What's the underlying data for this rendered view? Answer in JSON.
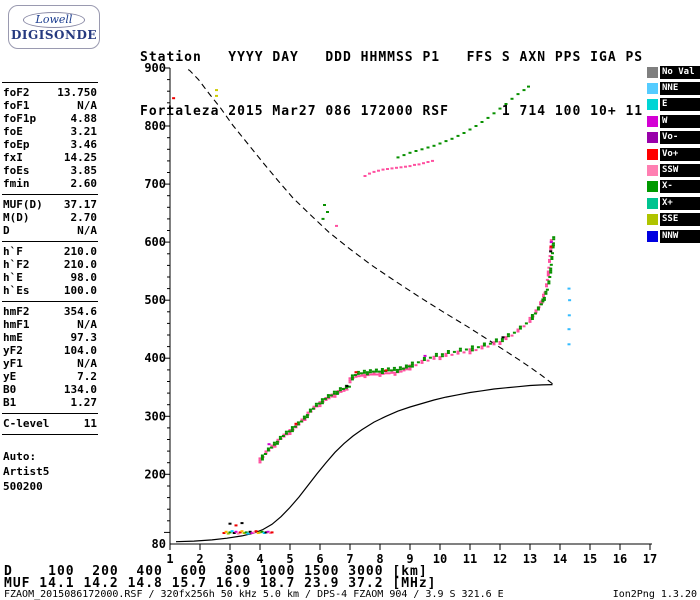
{
  "logo": {
    "top": "Lowell",
    "bottom": "DIGISONDE"
  },
  "header": {
    "line1": "Station   YYYY DAY   DDD HHMMSS P1   FFS S AXN PPS IGA PS",
    "line2": "Fortaleza 2015 Mar27 086 172000 RSF      1 714 100 10+ 11"
  },
  "params": {
    "groups": [
      {
        "rows": [
          [
            "foF2",
            "13.750"
          ],
          [
            "foF1",
            "N/A"
          ],
          [
            "foF1p",
            "4.88"
          ],
          [
            "foE",
            "3.21"
          ],
          [
            "foEp",
            "3.46"
          ],
          [
            "fxI",
            "14.25"
          ],
          [
            "foEs",
            "3.85"
          ],
          [
            "fmin",
            "2.60"
          ]
        ]
      },
      {
        "rows": [
          [
            "MUF(D)",
            "37.17"
          ],
          [
            "M(D)",
            "2.70"
          ],
          [
            "D",
            "N/A"
          ]
        ]
      },
      {
        "rows": [
          [
            "h`F",
            "210.0"
          ],
          [
            "h`F2",
            "210.0"
          ],
          [
            "h`E",
            "98.0"
          ],
          [
            "h`Es",
            "100.0"
          ]
        ]
      },
      {
        "rows": [
          [
            "hmF2",
            "354.6"
          ],
          [
            "hmF1",
            "N/A"
          ],
          [
            "hmE",
            "97.3"
          ],
          [
            "yF2",
            "104.0"
          ],
          [
            "yF1",
            "N/A"
          ],
          [
            "yE",
            "7.2"
          ],
          [
            "B0",
            "134.0"
          ],
          [
            "B1",
            "1.27"
          ]
        ]
      },
      {
        "rows": [
          [
            "C-level",
            "11"
          ]
        ]
      }
    ],
    "footer": [
      "Auto:",
      "Artist5",
      "500200"
    ]
  },
  "legend": {
    "items": [
      {
        "label": "No Val",
        "color": "#7F7F7F"
      },
      {
        "label": "NNE",
        "color": "#55CCFF"
      },
      {
        "label": "E",
        "color": "#00D5D5"
      },
      {
        "label": "W",
        "color": "#D400D4"
      },
      {
        "label": "Vo-",
        "color": "#9900AA"
      },
      {
        "label": "Vo+",
        "color": "#FF0000"
      },
      {
        "label": "SSW",
        "color": "#FF7FB2"
      },
      {
        "label": "X-",
        "color": "#009900"
      },
      {
        "label": "X+",
        "color": "#00C490"
      },
      {
        "label": "SSE",
        "color": "#AFC400"
      },
      {
        "label": "NNW",
        "color": "#0000E0"
      }
    ]
  },
  "footer": {
    "d_row": "D    100  200  400  600  800 1000 1500 3000 [km]",
    "muf_row": "MUF 14.1 14.2 14.8 15.7 16.9 18.7 23.9 37.2 [MHz]",
    "status_left": "FZAOM_2015086172000.RSF / 320fx256h 50 kHz 5.0 km / DPS-4 FZAOM 904 / 3.9 S 321.6 E",
    "status_right": "Ion2Png 1.3.20"
  },
  "chart_data": {
    "type": "scatter",
    "xlim": [
      1,
      17
    ],
    "ylim": [
      80,
      900
    ],
    "x_ticks": [
      1,
      2,
      3,
      4,
      5,
      6,
      7,
      8,
      9,
      10,
      11,
      12,
      13,
      14,
      15,
      16,
      17
    ],
    "y_ticks": [
      [
        900,
        "900"
      ],
      [
        800,
        "800"
      ],
      [
        700,
        "700"
      ],
      [
        600,
        "600"
      ],
      [
        500,
        "500"
      ],
      [
        400,
        "400"
      ],
      [
        300,
        "300"
      ],
      [
        200,
        "200"
      ],
      [
        80,
        "80"
      ]
    ],
    "muf_table": {
      "distances_km": [
        100,
        200,
        400,
        600,
        800,
        1000,
        1500,
        3000
      ],
      "muf_mhz": [
        14.1,
        14.2,
        14.8,
        15.7,
        16.9,
        18.7,
        23.9,
        37.2
      ]
    },
    "profile_solid": [
      [
        1.2,
        84
      ],
      [
        1.8,
        85
      ],
      [
        2.4,
        87
      ],
      [
        2.9,
        90
      ],
      [
        3.4,
        94
      ],
      [
        3.8,
        99
      ],
      [
        4.1,
        105
      ],
      [
        4.4,
        114
      ],
      [
        4.7,
        127
      ],
      [
        5.0,
        143
      ],
      [
        5.3,
        161
      ],
      [
        5.6,
        181
      ],
      [
        5.9,
        201
      ],
      [
        6.2,
        220
      ],
      [
        6.5,
        238
      ],
      [
        6.8,
        253
      ],
      [
        7.1,
        266
      ],
      [
        7.4,
        277
      ],
      [
        7.8,
        290
      ],
      [
        8.2,
        300
      ],
      [
        8.6,
        309
      ],
      [
        9.0,
        316
      ],
      [
        9.4,
        322
      ],
      [
        9.8,
        328
      ],
      [
        10.2,
        333
      ],
      [
        10.6,
        337
      ],
      [
        11.0,
        341
      ],
      [
        11.4,
        344
      ],
      [
        11.8,
        347
      ],
      [
        12.2,
        349
      ],
      [
        12.6,
        351
      ],
      [
        13.0,
        353
      ],
      [
        13.4,
        354
      ],
      [
        13.75,
        354.6
      ]
    ],
    "profile_dashed": [
      [
        13.75,
        356
      ],
      [
        13.6,
        362
      ],
      [
        13.4,
        370
      ],
      [
        13.1,
        381
      ],
      [
        12.7,
        395
      ],
      [
        12.2,
        412
      ],
      [
        11.6,
        432
      ],
      [
        10.9,
        455
      ],
      [
        10.1,
        480
      ],
      [
        9.3,
        506
      ],
      [
        8.5,
        533
      ],
      [
        7.7,
        561
      ],
      [
        7.0,
        588
      ],
      [
        6.3,
        617
      ],
      [
        5.7,
        646
      ],
      [
        5.1,
        676
      ],
      [
        4.6,
        706
      ],
      [
        4.1,
        737
      ],
      [
        3.6,
        769
      ],
      [
        3.1,
        801
      ],
      [
        2.7,
        830
      ],
      [
        2.3,
        856
      ],
      [
        1.95,
        880
      ],
      [
        1.65,
        896
      ],
      [
        1.5,
        900
      ]
    ],
    "series": [
      {
        "name": "f-trace-o",
        "color": "#FF50A0",
        "thicken": true,
        "points": [
          [
            4.0,
            224
          ],
          [
            4.1,
            230
          ],
          [
            4.2,
            236
          ],
          [
            4.3,
            241
          ],
          [
            4.4,
            246
          ],
          [
            4.5,
            251
          ],
          [
            4.6,
            256
          ],
          [
            4.7,
            261
          ],
          [
            4.8,
            265
          ],
          [
            4.9,
            269
          ],
          [
            5.0,
            273
          ],
          [
            5.1,
            277
          ],
          [
            5.2,
            281
          ],
          [
            5.3,
            286
          ],
          [
            5.4,
            291
          ],
          [
            5.5,
            297
          ],
          [
            5.6,
            303
          ],
          [
            5.7,
            308
          ],
          [
            5.8,
            313
          ],
          [
            5.9,
            317
          ],
          [
            6.0,
            321
          ],
          [
            6.1,
            325
          ],
          [
            6.2,
            328
          ],
          [
            6.3,
            331
          ],
          [
            6.4,
            334
          ],
          [
            6.5,
            337
          ],
          [
            6.6,
            340
          ],
          [
            6.7,
            342
          ],
          [
            6.8,
            344
          ],
          [
            6.9,
            346
          ],
          [
            7.0,
            362
          ],
          [
            7.1,
            366
          ],
          [
            7.2,
            368
          ],
          [
            7.3,
            369
          ],
          [
            7.4,
            370
          ],
          [
            7.5,
            371
          ],
          [
            7.6,
            371
          ],
          [
            7.7,
            372
          ],
          [
            7.8,
            372
          ],
          [
            7.9,
            372
          ],
          [
            8.0,
            373
          ],
          [
            8.1,
            373
          ],
          [
            8.2,
            374
          ],
          [
            8.3,
            374
          ],
          [
            8.4,
            375
          ],
          [
            8.5,
            375
          ],
          [
            8.6,
            376
          ],
          [
            8.7,
            377
          ],
          [
            8.8,
            379
          ],
          [
            8.9,
            381
          ],
          [
            9.0,
            384
          ],
          [
            9.2,
            388
          ],
          [
            9.4,
            392
          ],
          [
            9.6,
            396
          ],
          [
            9.8,
            399
          ],
          [
            10.0,
            402
          ],
          [
            10.2,
            404
          ],
          [
            10.4,
            406
          ],
          [
            10.6,
            408
          ],
          [
            10.8,
            410
          ],
          [
            11.0,
            412
          ],
          [
            11.2,
            414
          ],
          [
            11.4,
            417
          ],
          [
            11.6,
            420
          ],
          [
            11.8,
            424
          ],
          [
            12.0,
            428
          ],
          [
            12.2,
            433
          ],
          [
            12.4,
            439
          ],
          [
            12.6,
            446
          ],
          [
            12.8,
            455
          ],
          [
            13.0,
            466
          ],
          [
            13.1,
            472
          ],
          [
            13.2,
            479
          ],
          [
            13.3,
            488
          ],
          [
            13.35,
            493
          ],
          [
            13.4,
            499
          ],
          [
            13.45,
            506
          ],
          [
            13.5,
            513
          ],
          [
            13.55,
            524
          ],
          [
            13.58,
            535
          ],
          [
            13.61,
            546
          ],
          [
            13.63,
            556
          ],
          [
            13.65,
            566
          ],
          [
            13.67,
            576
          ],
          [
            13.69,
            586
          ],
          [
            13.7,
            593
          ],
          [
            13.71,
            600
          ]
        ]
      },
      {
        "name": "f-trace-x",
        "color": "#089000",
        "thicken": true,
        "base": "f-trace-o",
        "df": 0.08,
        "dh": 5,
        "points": []
      },
      {
        "name": "f-trace-accents",
        "colors": [
          "#EE0000",
          "#CC00CC",
          "#000000"
        ],
        "points": [
          [
            13.7,
            592
          ],
          [
            13.71,
            600
          ],
          [
            13.69,
            584
          ],
          [
            7.2,
            376
          ],
          [
            9.5,
            404
          ],
          [
            12.1,
            436
          ],
          [
            5.2,
            287
          ],
          [
            4.3,
            252
          ],
          [
            6.9,
            352
          ],
          [
            8.2,
            379
          ]
        ]
      },
      {
        "name": "second-hop-o",
        "color": "#FF50A0",
        "points": [
          [
            7.5,
            714
          ],
          [
            7.65,
            718
          ],
          [
            7.8,
            721
          ],
          [
            7.95,
            723
          ],
          [
            8.1,
            725
          ],
          [
            8.25,
            726
          ],
          [
            8.4,
            727
          ],
          [
            8.55,
            728
          ],
          [
            8.7,
            729
          ],
          [
            8.85,
            730
          ],
          [
            9.0,
            731
          ],
          [
            9.15,
            733
          ],
          [
            9.3,
            734
          ],
          [
            9.45,
            736
          ],
          [
            9.6,
            738
          ],
          [
            9.75,
            740
          ]
        ]
      },
      {
        "name": "second-hop-x",
        "color": "#089000",
        "points": [
          [
            8.6,
            746
          ],
          [
            8.8,
            750
          ],
          [
            9.0,
            754
          ],
          [
            9.2,
            757
          ],
          [
            9.4,
            760
          ],
          [
            9.6,
            763
          ],
          [
            9.8,
            766
          ],
          [
            10.0,
            770
          ],
          [
            10.2,
            774
          ],
          [
            10.4,
            778
          ],
          [
            10.6,
            783
          ],
          [
            10.8,
            788
          ],
          [
            11.0,
            794
          ],
          [
            11.2,
            800
          ],
          [
            11.4,
            807
          ],
          [
            11.6,
            814
          ],
          [
            11.8,
            822
          ],
          [
            12.0,
            830
          ],
          [
            12.2,
            838
          ],
          [
            12.4,
            847
          ],
          [
            12.6,
            855
          ],
          [
            12.8,
            862
          ],
          [
            12.95,
            868
          ]
        ]
      },
      {
        "name": "es-layer",
        "colors": [
          "#EE0000",
          "#FFB300",
          "#AFC400",
          "#089000",
          "#00CCFF",
          "#000000",
          "#D400D4",
          "#FF7FB2"
        ],
        "points": [
          [
            2.8,
            99
          ],
          [
            2.87,
            101
          ],
          [
            2.94,
            98
          ],
          [
            3.0,
            100
          ],
          [
            3.07,
            102
          ],
          [
            3.14,
            99
          ],
          [
            3.2,
            101
          ],
          [
            3.27,
            98
          ],
          [
            3.34,
            100
          ],
          [
            3.4,
            102
          ],
          [
            3.47,
            99
          ],
          [
            3.54,
            100
          ],
          [
            3.6,
            98
          ],
          [
            3.67,
            101
          ],
          [
            3.74,
            99
          ],
          [
            3.8,
            100
          ],
          [
            3.87,
            102
          ],
          [
            3.94,
            99
          ],
          [
            4.0,
            100
          ],
          [
            4.07,
            101
          ],
          [
            4.14,
            99
          ],
          [
            4.2,
            100
          ],
          [
            4.27,
            101
          ],
          [
            4.34,
            99
          ],
          [
            4.4,
            100
          ]
        ]
      },
      {
        "name": "es-strays",
        "colors": [
          "#000000",
          "#EE0000"
        ],
        "points": [
          [
            3.0,
            115
          ],
          [
            3.2,
            112
          ],
          [
            3.4,
            116
          ]
        ]
      },
      {
        "name": "x-mode-asymptote",
        "color": "#33BBFF",
        "points": [
          [
            14.3,
            424
          ],
          [
            14.3,
            450
          ],
          [
            14.31,
            474
          ],
          [
            14.32,
            500
          ],
          [
            14.3,
            520
          ]
        ]
      },
      {
        "name": "stray-marks",
        "colors": [
          "#CCCC00",
          "#CCCC00",
          "#EE0000",
          "#089000",
          "#089000",
          "#089000",
          "#FF50A0"
        ],
        "points": [
          [
            2.55,
            852
          ],
          [
            2.55,
            862
          ],
          [
            1.12,
            848
          ],
          [
            6.1,
            640
          ],
          [
            6.25,
            652
          ],
          [
            6.15,
            664
          ],
          [
            6.55,
            628
          ]
        ]
      }
    ]
  }
}
